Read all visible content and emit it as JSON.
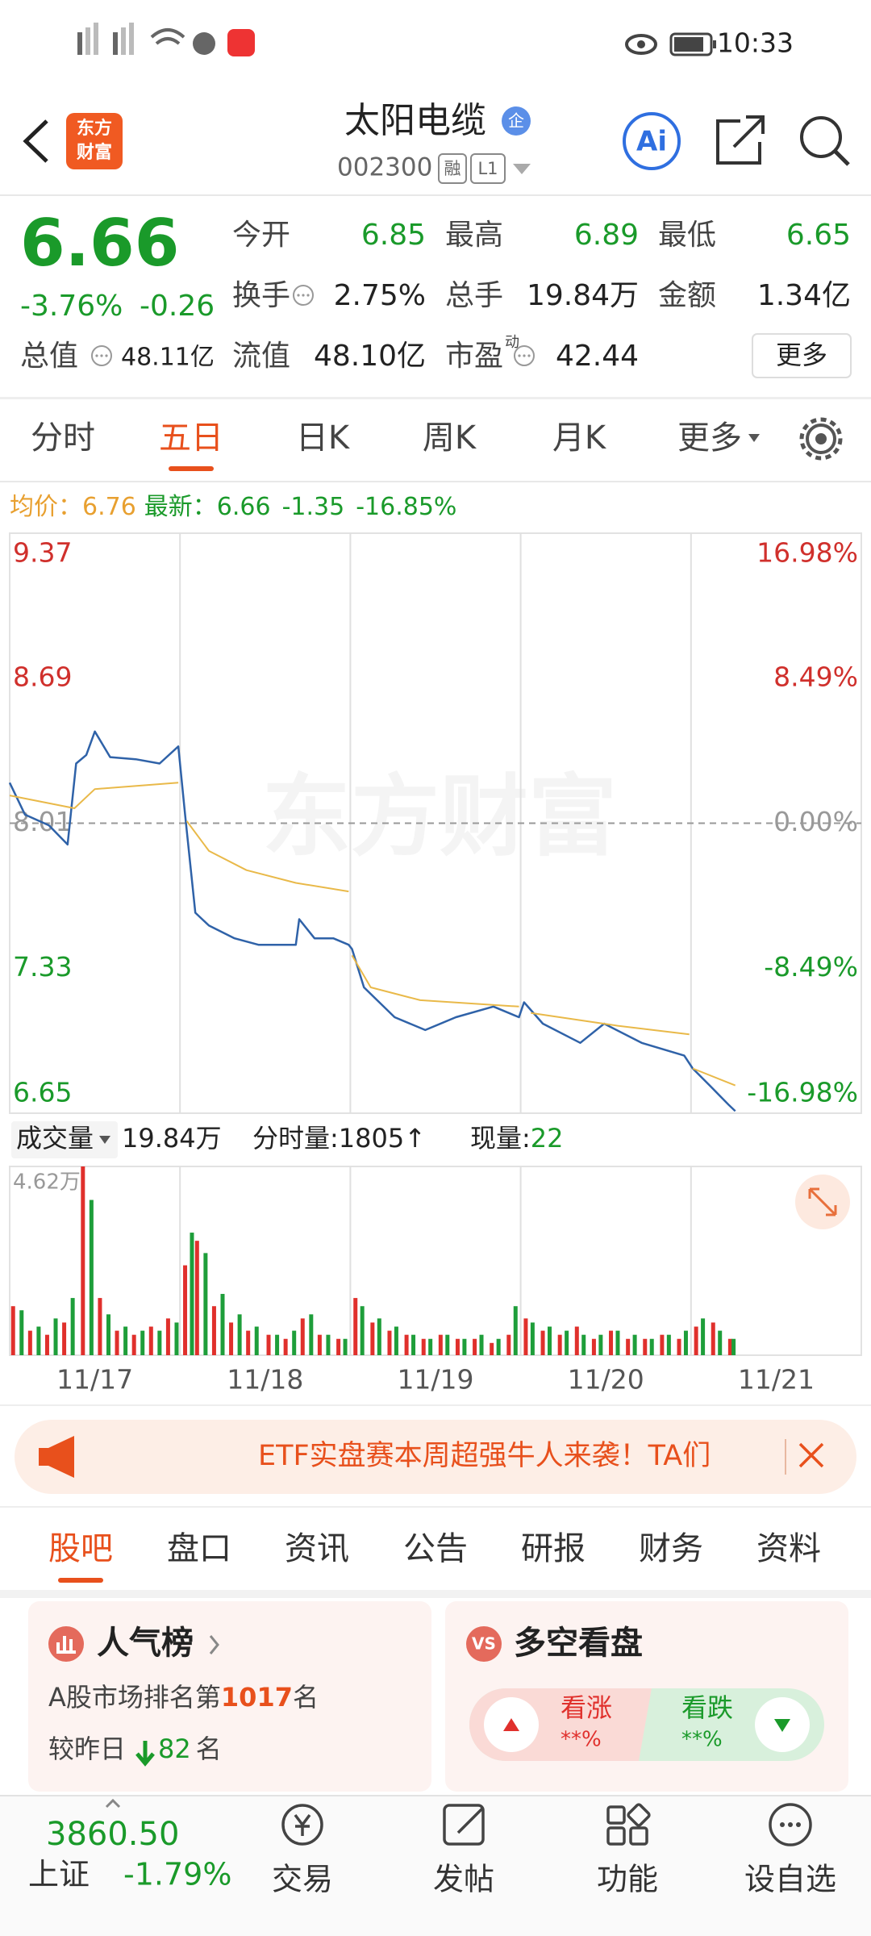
{
  "status_bar": {
    "time": "10:33"
  },
  "header": {
    "logo": [
      "东方",
      "财富"
    ],
    "title": "太阳电缆",
    "badge": "企",
    "code": "002300",
    "tags": [
      "融",
      "L1"
    ],
    "ai": "Ai"
  },
  "quote": {
    "price": "6.66",
    "change_pct": "-3.76%",
    "change": "-0.26",
    "color": "#1a9a2a",
    "total_value_label": "总值",
    "total_value": "48.11亿",
    "fields": [
      {
        "label": "今开",
        "value": "6.85",
        "color": "#1a9a2a"
      },
      {
        "label": "最高",
        "value": "6.89",
        "color": "#1a9a2a"
      },
      {
        "label": "最低",
        "value": "6.65",
        "color": "#1a9a2a"
      },
      {
        "label": "换手",
        "value": "2.75%",
        "info": true
      },
      {
        "label": "总手",
        "value": "19.84万"
      },
      {
        "label": "金额",
        "value": "1.34亿"
      },
      {
        "label": "流值",
        "value": "48.10亿"
      },
      {
        "label": "市盈",
        "sup": "动",
        "value": "42.44",
        "info": true
      }
    ],
    "more": "更多"
  },
  "tabs": {
    "items": [
      "分时",
      "五日",
      "日K",
      "周K",
      "月K",
      "更多"
    ],
    "active": 1
  },
  "chart_info": {
    "avg_label": "均价：",
    "avg": "6.76",
    "latest_label": "最新：",
    "latest": "6.66",
    "change": "-1.35",
    "change_pct": "-16.85%"
  },
  "chart_data": [
    {
      "type": "line",
      "watermark": "东方财富",
      "xlim": [
        0,
        5
      ],
      "ylim": [
        6.65,
        9.37
      ],
      "yticks": [
        9.37,
        8.69,
        8.01,
        7.33,
        6.65
      ],
      "y2lim": [
        -16.98,
        16.98
      ],
      "y2ticks": [
        {
          "value": 16.98,
          "label": "16.98%"
        },
        {
          "value": 8.49,
          "label": "8.49%"
        },
        {
          "value": 0,
          "label": "0.00%"
        },
        {
          "value": -8.49,
          "label": "-8.49%"
        },
        {
          "value": -16.98,
          "label": "-16.98%"
        }
      ],
      "series": [
        {
          "color": "#2f62a8",
          "x": [
            0,
            0.09,
            0.23,
            0.34,
            0.39,
            0.45,
            0.5,
            0.59,
            0.74,
            0.88,
            0.99,
            1.03,
            1.09,
            1.17,
            1.32,
            1.46,
            1.68,
            1.7,
            1.79,
            1.9,
            1.99,
            2.01,
            2.08,
            2.26,
            2.44,
            2.62,
            2.84,
            2.99,
            3.02,
            3.13,
            3.35,
            3.49,
            3.71,
            3.96,
            4.01,
            4.11,
            4.22,
            4.26
          ],
          "values": [
            8.2,
            8.05,
            8.0,
            7.91,
            8.29,
            8.33,
            8.44,
            8.32,
            8.31,
            8.29,
            8.37,
            8.05,
            7.59,
            7.53,
            7.47,
            7.44,
            7.44,
            7.56,
            7.47,
            7.47,
            7.44,
            7.42,
            7.24,
            7.1,
            7.04,
            7.1,
            7.15,
            7.1,
            7.17,
            7.07,
            6.98,
            7.07,
            6.98,
            6.92,
            6.86,
            6.78,
            6.69,
            6.66
          ]
        },
        {
          "color": "#e9b949",
          "x": [
            0,
            0.38,
            0.5,
            0.99,
            null,
            1.04,
            1.17,
            1.39,
            1.68,
            1.99,
            null,
            2.01,
            2.12,
            2.41,
            2.99,
            null,
            3.06,
            3.57,
            3.99,
            null,
            4.01,
            4.26
          ],
          "values": [
            8.14,
            8.08,
            8.17,
            8.2,
            null,
            8.02,
            7.88,
            7.79,
            7.73,
            7.69,
            null,
            7.39,
            7.24,
            7.18,
            7.15,
            null,
            7.12,
            7.06,
            7.02,
            null,
            6.86,
            6.78
          ]
        }
      ]
    },
    {
      "type": "bar",
      "xlim": [
        0,
        5
      ],
      "ylim": [
        0,
        46200
      ],
      "yticks": [
        {
          "value": 46200,
          "label": "4.62万"
        }
      ],
      "xticks": [
        {
          "value": 0.5,
          "label": "11/17"
        },
        {
          "value": 1.5,
          "label": "11/18"
        },
        {
          "value": 2.5,
          "label": "11/19"
        },
        {
          "value": 3.5,
          "label": "11/20"
        },
        {
          "value": 4.5,
          "label": "11/21"
        }
      ],
      "series": [
        {
          "color": "#e0302c",
          "x": [
            0.02,
            0.12,
            0.22,
            0.32,
            0.43,
            0.53,
            0.63,
            0.73,
            0.83,
            0.93,
            1.03,
            1.1,
            1.2,
            1.3,
            1.4,
            1.52,
            1.62,
            1.72,
            1.82,
            1.93,
            2.03,
            2.13,
            2.23,
            2.33,
            2.43,
            2.53,
            2.63,
            2.73,
            2.83,
            2.93,
            3.03,
            3.13,
            3.23,
            3.33,
            3.43,
            3.53,
            3.63,
            3.73,
            3.83,
            3.93,
            4.03,
            4.13,
            4.23
          ],
          "values": [
            12000,
            6000,
            5000,
            8000,
            46200,
            14000,
            6000,
            5000,
            7000,
            9000,
            22000,
            28000,
            12000,
            8000,
            6000,
            5000,
            4000,
            9000,
            5000,
            4000,
            14000,
            8000,
            6000,
            5000,
            4000,
            5000,
            4000,
            4000,
            3000,
            5000,
            9000,
            6000,
            5000,
            7000,
            4000,
            6000,
            4000,
            4000,
            5000,
            4000,
            7000,
            8000,
            4000
          ]
        },
        {
          "color": "#1e9e3a",
          "x": [
            0.07,
            0.17,
            0.27,
            0.37,
            0.48,
            0.58,
            0.68,
            0.78,
            0.88,
            0.98,
            1.07,
            1.15,
            1.25,
            1.35,
            1.45,
            1.57,
            1.67,
            1.77,
            1.87,
            1.97,
            2.07,
            2.17,
            2.27,
            2.37,
            2.47,
            2.57,
            2.67,
            2.77,
            2.87,
            2.97,
            3.07,
            3.17,
            3.27,
            3.37,
            3.47,
            3.57,
            3.67,
            3.77,
            3.87,
            3.97,
            4.07,
            4.17,
            4.25
          ],
          "values": [
            11000,
            7000,
            9000,
            14000,
            38000,
            10000,
            7000,
            6000,
            6000,
            8000,
            30000,
            25000,
            15000,
            10000,
            7000,
            5000,
            6000,
            10000,
            5000,
            4000,
            12000,
            9000,
            7000,
            5000,
            4000,
            5000,
            4000,
            5000,
            4000,
            12000,
            8000,
            7000,
            6000,
            5000,
            5000,
            6000,
            5000,
            4000,
            5000,
            6000,
            9000,
            6000,
            4000
          ]
        }
      ]
    }
  ],
  "volume_info": {
    "label": "成交量",
    "total": "19.84万",
    "tick_label": "分时量:",
    "tick": "1805",
    "tick_arrow": "↑",
    "now_label": "现量:",
    "now": "22"
  },
  "banner": {
    "text": "ETF实盘赛本周超强牛人来袭！TA们"
  },
  "section_tabs": {
    "items": [
      "股吧",
      "盘口",
      "资讯",
      "公告",
      "研报",
      "财务",
      "资料"
    ],
    "active": 0
  },
  "cards": {
    "popularity": {
      "title": "人气榜",
      "rank_prefix": "A股市场排名第",
      "rank": "1017",
      "rank_suffix": "名",
      "change_prefix": "较昨日",
      "change": "82",
      "change_suffix": "名"
    },
    "sentiment": {
      "badge": "VS",
      "title": "多空看盘",
      "bull": "看涨",
      "bull_pct": "**%",
      "bear": "看跌",
      "bear_pct": "**%"
    }
  },
  "bottom_nav": {
    "index_value": "3860.50",
    "index_name": "上证",
    "index_change": "-1.79%",
    "items": [
      "交易",
      "发帖",
      "功能",
      "设自选"
    ]
  }
}
